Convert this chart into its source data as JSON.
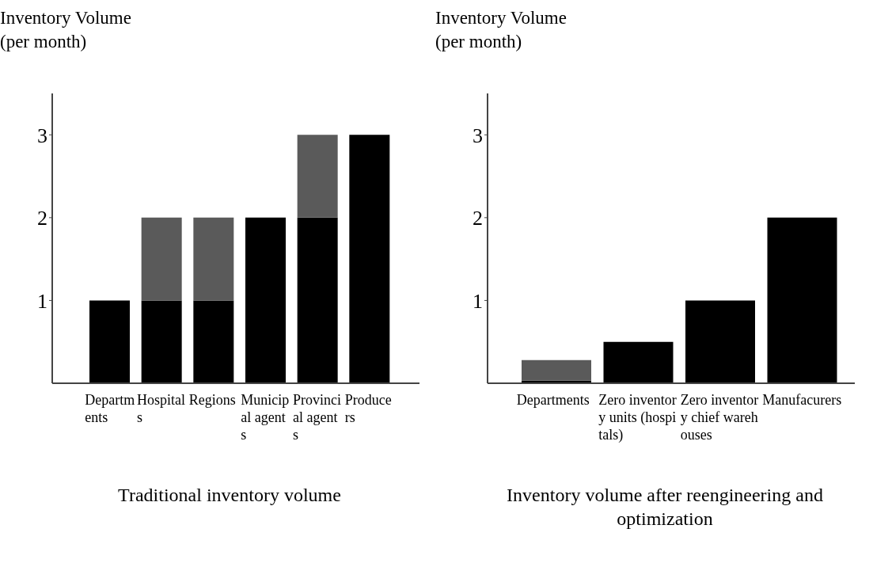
{
  "chart_data": [
    {
      "type": "bar",
      "title": "Traditional inventory volume",
      "ylabel": "Inventory Volume (per month)",
      "categories": [
        "Departments",
        "Hospitals",
        "Regions",
        "Municipal agents",
        "Provincial agents",
        "Producers"
      ],
      "stacked": true,
      "ylim": [
        0,
        3.5
      ],
      "yticks": [
        1,
        2,
        3
      ],
      "series": [
        {
          "color": "#000000",
          "values": [
            1,
            1,
            1,
            2,
            2,
            3
          ]
        },
        {
          "color": "#5a5a5a",
          "values": [
            null,
            1,
            1,
            null,
            1,
            null
          ]
        }
      ]
    },
    {
      "type": "bar",
      "title": "Inventory volume after reengineering and optimization",
      "ylabel": "Inventory Volume (per month)",
      "categories": [
        "Departments",
        "Zero inventory units (hospitals)",
        "Zero inventory chief warehouses",
        "Manufacurers"
      ],
      "stacked": true,
      "ylim": [
        0,
        3.5
      ],
      "yticks": [
        1,
        2,
        3
      ],
      "series": [
        {
          "color": "#000000",
          "values": [
            0.03,
            0.5,
            1,
            2
          ]
        },
        {
          "color": "#5a5a5a",
          "values": [
            0.25,
            null,
            null,
            null
          ]
        }
      ]
    }
  ]
}
